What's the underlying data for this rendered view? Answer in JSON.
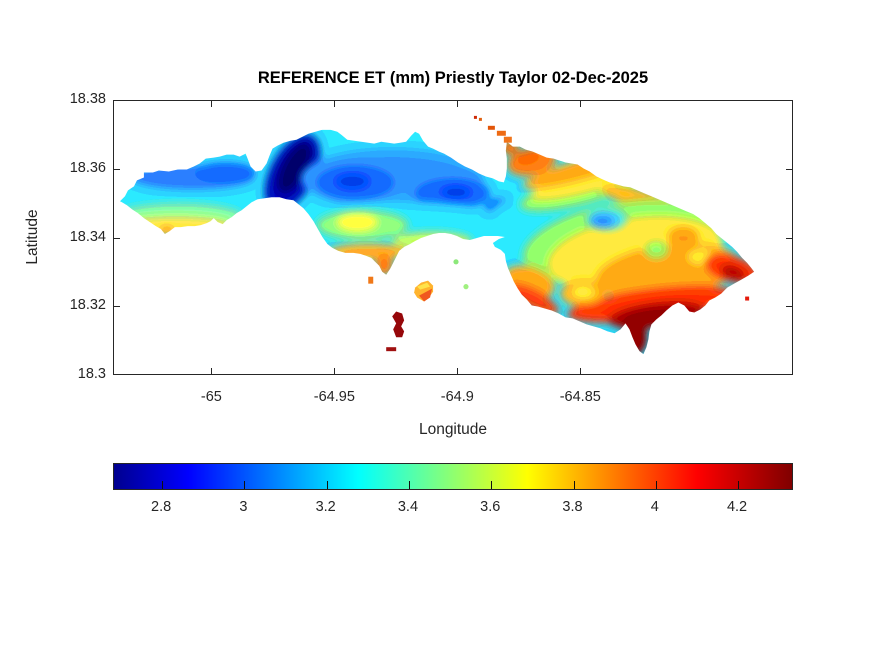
{
  "figure": {
    "background": "#ffffff",
    "axis_color": "#262626",
    "title_color": "#000000"
  },
  "chart_data": {
    "type": "filled-contour-map",
    "title": "REFERENCE ET (mm) Priestly Taylor 02-Dec-2025",
    "xlabel": "Longitude",
    "ylabel": "Latitude",
    "xlim": [
      -65.04,
      -64.7635
    ],
    "ylim": [
      18.3,
      18.38
    ],
    "grid": false,
    "box": true,
    "x_ticks": {
      "values": [
        -65,
        -64.95,
        -64.9,
        -64.85
      ],
      "labels": [
        "-65",
        "-64.95",
        "-64.9",
        "-64.85"
      ]
    },
    "y_ticks": {
      "values": [
        18.38,
        18.36,
        18.34,
        18.32,
        18.3
      ],
      "labels": [
        "18.38",
        "18.36",
        "18.34",
        "18.32",
        "18.3"
      ]
    },
    "colormap": "jet",
    "colormap_stops": [
      [
        0.0,
        "#00008F"
      ],
      [
        0.11,
        "#0000FF"
      ],
      [
        0.36,
        "#00FFFF"
      ],
      [
        0.61,
        "#FFFF00"
      ],
      [
        0.86,
        "#FF0000"
      ],
      [
        1.0,
        "#800000"
      ]
    ],
    "colorbar": {
      "orientation": "horizontal",
      "range": [
        2.683,
        4.336
      ],
      "tick_values": [
        2.8,
        3.0,
        3.2,
        3.4,
        3.6,
        3.8,
        4.0,
        4.2
      ],
      "tick_labels": [
        "2.8",
        "3",
        "3.2",
        "3.4",
        "3.6",
        "3.8",
        "4",
        "4.2"
      ]
    },
    "value_min_estimate": 2.68,
    "value_max_estimate": 4.34,
    "regions": [
      {
        "area": "west-lobe north edge (blue)",
        "lon": -65.005,
        "lat": 18.357,
        "et_mm": 3.0
      },
      {
        "area": "west-lobe south band (yellow)",
        "lon": -65.017,
        "lat": 18.344,
        "et_mm": 3.8
      },
      {
        "area": "west-lobe south tip (orange)",
        "lon": -65.019,
        "lat": 18.342,
        "et_mm": 3.95
      },
      {
        "area": "central ridge minimum (dark navy)",
        "lon": -64.967,
        "lat": 18.36,
        "et_mm": 2.72
      },
      {
        "area": "north-central blue pocket",
        "lon": -64.942,
        "lat": 18.356,
        "et_mm": 2.95
      },
      {
        "area": "central cyan band",
        "lon": -64.915,
        "lat": 18.35,
        "et_mm": 3.2
      },
      {
        "area": "central yellow patch",
        "lon": -64.941,
        "lat": 18.345,
        "et_mm": 3.75
      },
      {
        "area": "northeast shoulder (orange)",
        "lon": -64.87,
        "lat": 18.363,
        "et_mm": 3.95
      },
      {
        "area": "east lobe cyan/blue pocket",
        "lon": -64.841,
        "lat": 18.345,
        "et_mm": 3.1
      },
      {
        "area": "east lobe core (yellow)",
        "lon": -64.822,
        "lat": 18.335,
        "et_mm": 3.75
      },
      {
        "area": "east lobe orange ring",
        "lon": -64.814,
        "lat": 18.33,
        "et_mm": 3.95
      },
      {
        "area": "southeast coast (red)",
        "lon": -64.817,
        "lat": 18.32,
        "et_mm": 4.15
      },
      {
        "area": "southeast maximum (dark red)",
        "lon": -64.822,
        "lat": 18.317,
        "et_mm": 4.3
      },
      {
        "area": "east tip (red)",
        "lon": -64.785,
        "lat": 18.33,
        "et_mm": 4.15
      },
      {
        "area": "offshore islet south (dark red)",
        "lon": -64.924,
        "lat": 18.315,
        "et_mm": 4.3
      },
      {
        "area": "offshore islet harbor (orange)",
        "lon": -64.914,
        "lat": 18.324,
        "et_mm": 4.0
      },
      {
        "area": "northeast islet streak (orange)",
        "lon": -64.892,
        "lat": 18.373,
        "et_mm": 3.95
      }
    ]
  }
}
